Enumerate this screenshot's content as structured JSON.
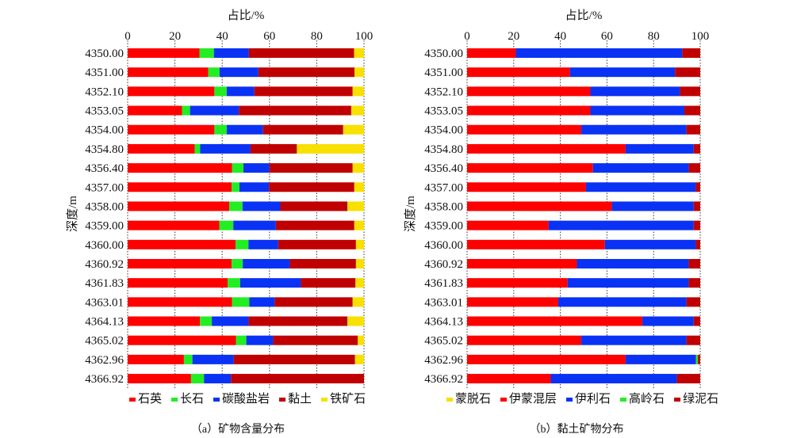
{
  "chart_data": [
    {
      "type": "bar",
      "orientation": "horizontal-stacked",
      "panel": "a",
      "caption": "（a）矿物含量分布",
      "xlabel": "占比/%",
      "ylabel": "深度/m",
      "xlim": [
        0,
        100
      ],
      "xticks": [
        "0",
        "20",
        "40",
        "60",
        "80",
        "100"
      ],
      "grid": true,
      "legend_position": "bottom",
      "categories": [
        "4350.00",
        "4351.00",
        "4352.10",
        "4353.05",
        "4354.00",
        "4354.80",
        "4356.40",
        "4357.00",
        "4358.00",
        "4359.00",
        "4360.00",
        "4360.92",
        "4361.83",
        "4363.01",
        "4364.13",
        "4365.02",
        "4362.96",
        "4366.92"
      ],
      "series": [
        {
          "name": "石英",
          "color": "#ff0000",
          "values": [
            30.4,
            34.1,
            36.7,
            23.0,
            36.7,
            28.4,
            44.2,
            44.0,
            43.0,
            38.8,
            45.7,
            44.0,
            42.3,
            44.2,
            30.6,
            45.8,
            23.8,
            26.8
          ]
        },
        {
          "name": "长石",
          "color": "#22ee22",
          "values": [
            6.1,
            4.8,
            5.2,
            3.4,
            5.2,
            2.3,
            4.8,
            3.3,
            5.6,
            5.9,
            5.4,
            4.7,
            5.3,
            7.3,
            5.0,
            4.4,
            3.6,
            5.5
          ]
        },
        {
          "name": "碳酸盐岩",
          "color": "#0a32f5",
          "values": [
            14.8,
            16.4,
            11.7,
            20.7,
            15.4,
            21.3,
            11.0,
            12.5,
            16.0,
            18.0,
            12.6,
            19.9,
            25.7,
            10.7,
            15.6,
            11.4,
            17.5,
            11.4
          ]
        },
        {
          "name": "黏土",
          "color": "#c00000",
          "values": [
            44.5,
            40.7,
            41.6,
            47.5,
            33.9,
            19.6,
            35.2,
            36.1,
            28.4,
            33.2,
            32.9,
            28.0,
            23.1,
            33.0,
            41.8,
            35.8,
            51.3,
            56.3
          ]
        },
        {
          "name": "铁矿石",
          "color": "#f8e000",
          "values": [
            4.2,
            4.0,
            4.8,
            5.4,
            8.8,
            28.4,
            4.8,
            4.1,
            7.0,
            4.1,
            3.4,
            3.4,
            3.6,
            4.8,
            7.0,
            2.6,
            3.8,
            0.0
          ]
        }
      ]
    },
    {
      "type": "bar",
      "orientation": "horizontal-stacked",
      "panel": "b",
      "caption": "（b）黏土矿物分布",
      "xlabel": "占比/%",
      "ylabel": "深度/m",
      "xlim": [
        0,
        100
      ],
      "xticks": [
        "0",
        "20",
        "40",
        "60",
        "80",
        "100"
      ],
      "grid": true,
      "legend_position": "bottom",
      "categories": [
        "4350.00",
        "4351.00",
        "4352.10",
        "4353.05",
        "4354.00",
        "4354.80",
        "4356.40",
        "4357.00",
        "4358.00",
        "4359.00",
        "4360.00",
        "4360.92",
        "4361.83",
        "4363.01",
        "4364.13",
        "4365.02",
        "4362.96",
        "4366.92"
      ],
      "series": [
        {
          "name": "蒙脱石",
          "color": "#f8e000",
          "values": [
            0,
            0,
            0,
            0,
            0,
            0,
            0,
            0,
            0,
            0,
            0,
            0,
            0,
            0,
            0,
            0,
            0,
            0
          ]
        },
        {
          "name": "伊蒙混层",
          "color": "#ff0000",
          "values": [
            20.9,
            44.1,
            52.9,
            52.9,
            49.0,
            68.0,
            54.0,
            51.0,
            62.1,
            35.0,
            59.1,
            47.1,
            43.1,
            39.1,
            75.2,
            49.0,
            68.0,
            35.9
          ]
        },
        {
          "name": "伊利石",
          "color": "#0a32f5",
          "values": [
            71.4,
            45.1,
            38.4,
            40.3,
            45.1,
            29.2,
            41.1,
            47.1,
            35.1,
            62.2,
            39.0,
            48.0,
            52.0,
            55.0,
            22.0,
            45.1,
            30.2,
            54.1
          ]
        },
        {
          "name": "高岭石",
          "color": "#22ee22",
          "values": [
            0,
            0,
            0,
            0,
            0,
            0,
            0,
            0,
            0,
            0,
            0,
            0,
            0,
            0,
            0,
            0,
            0.8,
            0
          ]
        },
        {
          "name": "绿泥石",
          "color": "#c00000",
          "values": [
            7.7,
            10.8,
            8.7,
            6.8,
            5.9,
            2.8,
            4.9,
            1.9,
            2.8,
            2.8,
            1.9,
            4.9,
            4.9,
            5.9,
            2.8,
            5.9,
            1.0,
            10.0
          ]
        }
      ]
    }
  ]
}
